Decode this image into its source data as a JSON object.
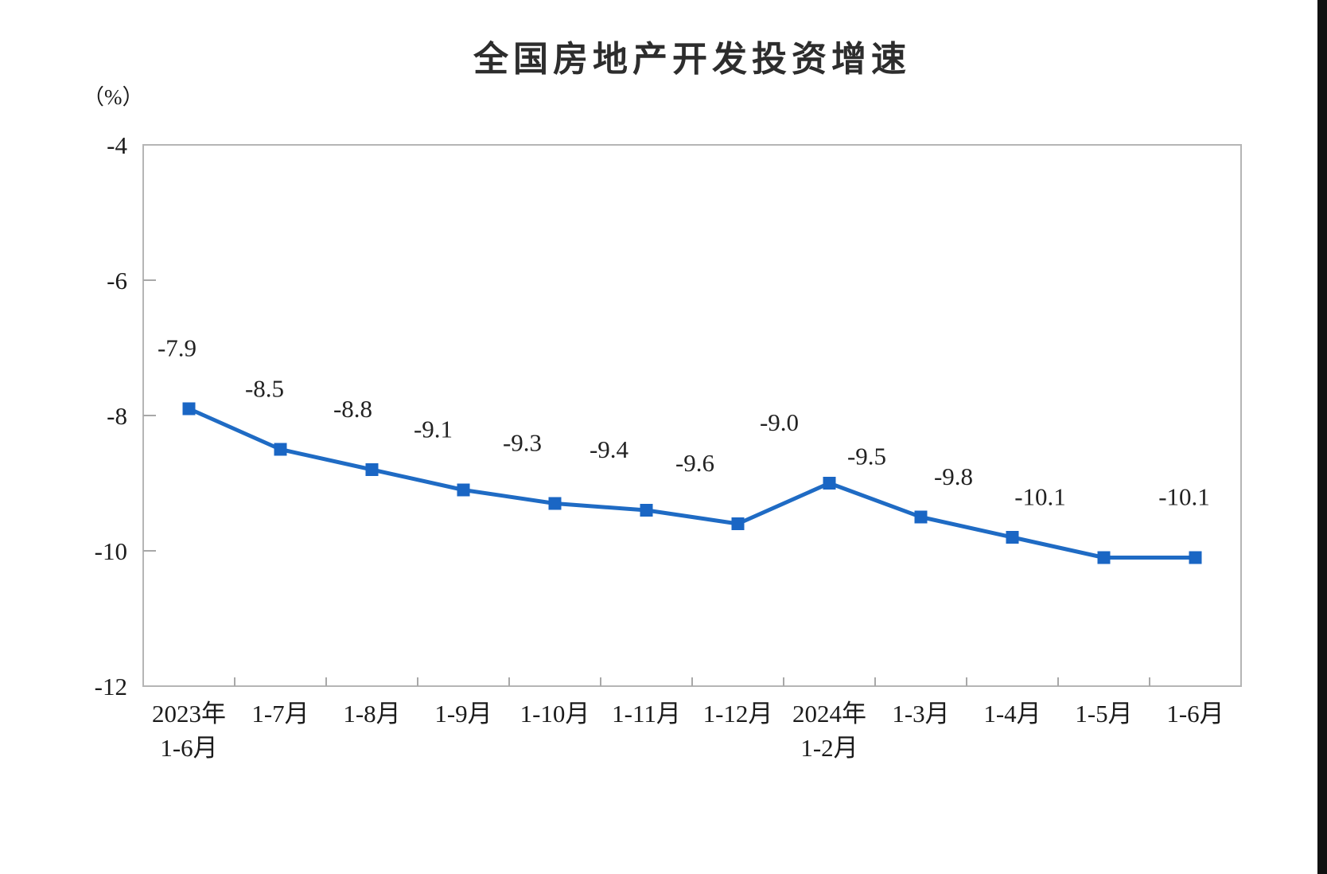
{
  "chart_data": {
    "type": "line",
    "title": "全国房地产开发投资增速",
    "unit_label": "（%）",
    "categories": [
      [
        "2023年",
        "1-6月"
      ],
      [
        "1-7月"
      ],
      [
        "1-8月"
      ],
      [
        "1-9月"
      ],
      [
        "1-10月"
      ],
      [
        "1-11月"
      ],
      [
        "1-12月"
      ],
      [
        "2024年",
        "1-2月"
      ],
      [
        "1-3月"
      ],
      [
        "1-4月"
      ],
      [
        "1-5月"
      ],
      [
        "1-6月"
      ]
    ],
    "values": [
      -7.9,
      -8.5,
      -8.8,
      -9.1,
      -9.3,
      -9.4,
      -9.6,
      -9.0,
      -9.5,
      -9.8,
      -10.1,
      -10.1
    ],
    "data_labels": [
      "-7.9",
      "-8.5",
      "-8.8",
      "-9.1",
      "-9.3",
      "-9.4",
      "-9.6",
      "-9.0",
      "-9.5",
      "-9.8",
      "-10.1",
      "-10.1"
    ],
    "y_ticks": [
      {
        "label": "-4",
        "value": -4
      },
      {
        "label": "-6",
        "value": -6
      },
      {
        "label": "-8",
        "value": -8
      },
      {
        "label": "-10",
        "value": -10
      },
      {
        "label": "-12",
        "value": -12
      }
    ],
    "ylim": [
      -12,
      -4
    ],
    "xlabel": "",
    "ylabel": "（%）",
    "grid": false,
    "legend": "none",
    "series_name": "全国房地产开发投资增速",
    "colors": {
      "line": "#1f6bc4",
      "marker": "#1a66c4",
      "axis_border": "#b5b5b5",
      "tick": "#a8a8a8",
      "text": "#1b1b1b",
      "data_label_text": "#222222"
    }
  }
}
